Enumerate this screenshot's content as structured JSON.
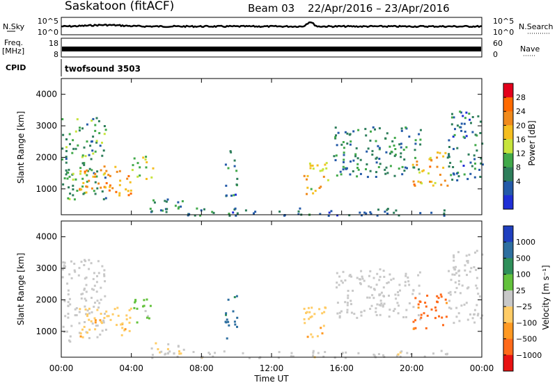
{
  "header": {
    "station": "Saskatoon (fitACF)",
    "beam": "Beam 03",
    "dates": "22/Apr/2016 – 23/Apr/2016"
  },
  "noise_panel": {
    "left_label": "N.Sky",
    "right_label": "N.Search",
    "left_ticks": [
      "10^5",
      "10^0"
    ],
    "right_ticks": [
      "10^5",
      "10^0"
    ]
  },
  "freq_panel": {
    "left_label_top": "Freq.",
    "left_label_bottom": "[MHz]",
    "right_label": "Nave",
    "left_ticks": [
      "18",
      "8"
    ],
    "right_ticks": [
      "60",
      "0"
    ]
  },
  "cpid_panel": {
    "label": "CPID",
    "value": "twofsound 3503"
  },
  "power_panel": {
    "ylabel": "Slant Range [km]",
    "yticks": [
      "4000",
      "3000",
      "2000",
      "1000"
    ],
    "colorbar_label": "Power [dB]",
    "colorbar_ticks": [
      "28",
      "24",
      "20",
      "16",
      "12",
      "8",
      "4"
    ],
    "colorbar_colors": [
      "#e3001b",
      "#ff6a00",
      "#f08a1c",
      "#f5be20",
      "#c7e43c",
      "#41a94a",
      "#2e7e5b",
      "#245aa8",
      "#1f2fd6"
    ]
  },
  "velocity_panel": {
    "ylabel": "Slant Range [km]",
    "yticks": [
      "4000",
      "3000",
      "2000",
      "1000"
    ],
    "colorbar_label": "Velocity [m s⁻¹]",
    "colorbar_ticks": [
      "1000",
      "500",
      "100",
      "25",
      "−25",
      "−100",
      "−500",
      "−1000"
    ],
    "colorbar_colors": [
      "#1f3fbf",
      "#2e6fa0",
      "#2f8f5a",
      "#63c23c",
      "#c8c8c8",
      "#ffcc66",
      "#ff9922",
      "#ff6a1a",
      "#e81212"
    ]
  },
  "x_axis": {
    "ticks": [
      "00:00",
      "04:00",
      "08:00",
      "12:00",
      "16:00",
      "20:00",
      "00:00"
    ],
    "label": "Time UT"
  },
  "chart_data": {
    "type": "heatmap",
    "title": "Saskatoon (fitACF)   Beam 03   22/Apr/2016 – 23/Apr/2016",
    "xlabel": "Time UT",
    "ylabel": "Slant Range [km]",
    "xlim": [
      0,
      24
    ],
    "ylim": [
      180,
      4500
    ],
    "x_ticks_hours": [
      0,
      4,
      8,
      12,
      16,
      20,
      24
    ],
    "y_ticks": [
      1000,
      2000,
      3000,
      4000
    ],
    "power_scale_db": [
      0,
      30
    ],
    "velocity_scale_ms": [
      -1000,
      1000
    ],
    "echo_regions": [
      {
        "t0": 0.0,
        "t1": 2.5,
        "r0": 700,
        "r1": 3300,
        "power_db": 10,
        "velocity": 25
      },
      {
        "t0": 1.0,
        "t1": 4.0,
        "r0": 800,
        "r1": 1800,
        "power_db": 22,
        "velocity": -300
      },
      {
        "t0": 4.0,
        "t1": 5.2,
        "r0": 1300,
        "r1": 2100,
        "power_db": 14,
        "velocity": 200
      },
      {
        "t0": 5.0,
        "t1": 7.0,
        "r0": 300,
        "r1": 700,
        "power_db": 8,
        "velocity": -100
      },
      {
        "t0": 9.3,
        "t1": 10.0,
        "r0": 800,
        "r1": 2300,
        "power_db": 6,
        "velocity": 700
      },
      {
        "t0": 13.8,
        "t1": 15.2,
        "r0": 800,
        "r1": 1900,
        "power_db": 18,
        "velocity": -300
      },
      {
        "t0": 15.5,
        "t1": 20.5,
        "r0": 1400,
        "r1": 3000,
        "power_db": 8,
        "velocity": 25
      },
      {
        "t0": 20.0,
        "t1": 22.0,
        "r0": 1100,
        "r1": 2200,
        "power_db": 20,
        "velocity": -700
      },
      {
        "t0": 22.0,
        "t1": 24.0,
        "r0": 1300,
        "r1": 3600,
        "power_db": 6,
        "velocity": 25
      },
      {
        "t0": 5.0,
        "t1": 22.0,
        "r0": 180,
        "r1": 420,
        "power_db": 6,
        "velocity": -40
      }
    ]
  }
}
